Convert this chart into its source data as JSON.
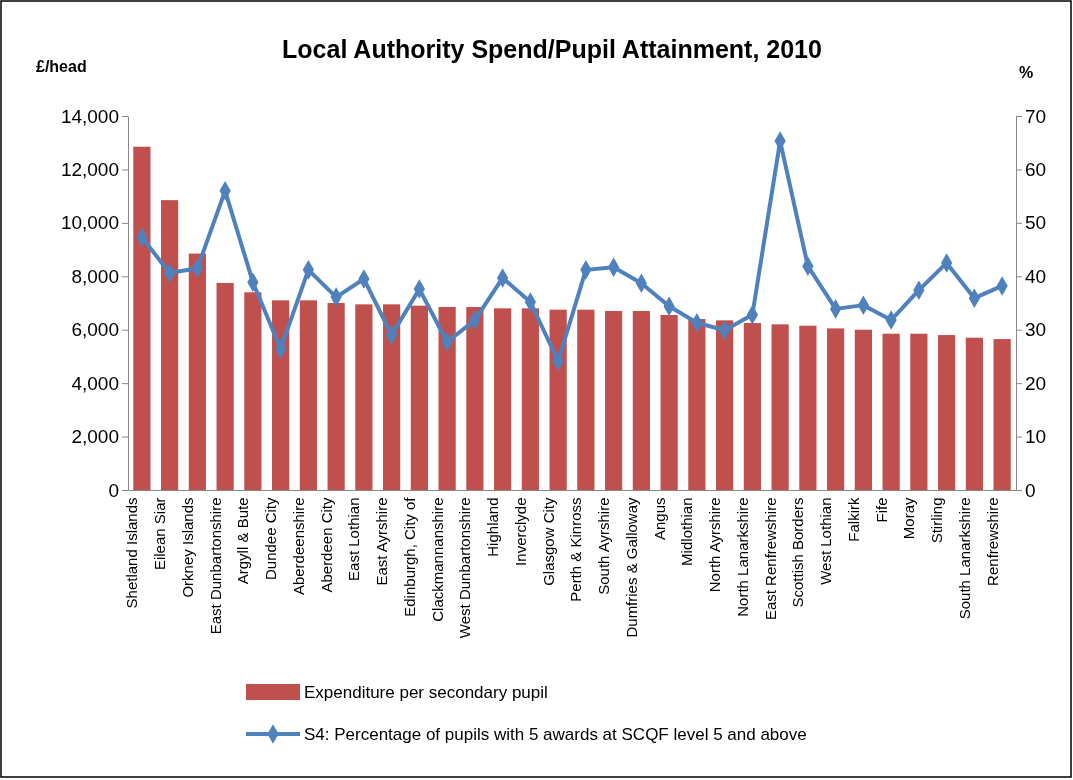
{
  "chart_data": {
    "type": "bar",
    "title": "Local Authority Spend/Pupil Attainment, 2010",
    "ylabel": "£/head",
    "y2label": "%",
    "categories": [
      "Shetland Islands",
      "Eilean Siar",
      "Orkney Islands",
      "East Dunbartonshire",
      "Argyll & Bute",
      "Dundee City",
      "Aberdeenshire",
      "Aberdeen City",
      "East Lothian",
      "East Ayrshire",
      "Edinburgh, City of",
      "Clackmannanshire",
      "West Dunbartonshire",
      "Highland",
      "Inverclyde",
      "Glasgow City",
      "Perth & Kinross",
      "South Ayrshire",
      "Dumfries & Galloway",
      "Angus",
      "Midlothian",
      "North Ayrshire",
      "North Lanarkshire",
      "East Renfrewshire",
      "Scottish Borders",
      "West Lothian",
      "Falkirk",
      "Fife",
      "Moray",
      "Stirling",
      "South Lanarkshire",
      "Renfrewshire"
    ],
    "series": [
      {
        "name": "Expenditure per secondary pupil",
        "color": "#c0504d",
        "values": [
          12850,
          10850,
          8850,
          7750,
          7400,
          7100,
          7100,
          7000,
          6950,
          6950,
          6900,
          6850,
          6850,
          6800,
          6800,
          6750,
          6750,
          6700,
          6700,
          6550,
          6400,
          6350,
          6250,
          6200,
          6150,
          6050,
          6000,
          5850,
          5850,
          5800,
          5700,
          5650
        ]
      },
      {
        "name": "S4: Percentage of pupils with 5 awards at SCQF level 5 and above",
        "type": "line",
        "axis": "y2",
        "color": "#4f81bd",
        "marker": "diamond",
        "values": [
          47.3,
          40.6,
          41.5,
          56,
          38.9,
          26.4,
          41.2,
          36.1,
          39.5,
          29,
          37.6,
          27.7,
          31.8,
          39.7,
          35.2,
          24.1,
          41.2,
          41.7,
          38.7,
          34.4,
          31.3,
          29.9,
          32.8,
          65.3,
          41.9,
          33.9,
          34.6,
          31.8,
          37.4,
          42.5,
          35.9,
          38.2
        ]
      }
    ],
    "ylim": [
      0,
      14000
    ],
    "yticks": [
      {
        "value": 0,
        "label": "0"
      },
      {
        "value": 2000,
        "label": "2,000"
      },
      {
        "value": 4000,
        "label": "4,000"
      },
      {
        "value": 6000,
        "label": "6,000"
      },
      {
        "value": 8000,
        "label": "8,000"
      },
      {
        "value": 10000,
        "label": "10,000"
      },
      {
        "value": 12000,
        "label": "12,000"
      },
      {
        "value": 14000,
        "label": "14,000"
      }
    ],
    "y2lim": [
      0,
      70
    ],
    "y2ticks": [
      0,
      10,
      20,
      30,
      40,
      50,
      60,
      70
    ],
    "grid": false,
    "legend": "bottom"
  }
}
